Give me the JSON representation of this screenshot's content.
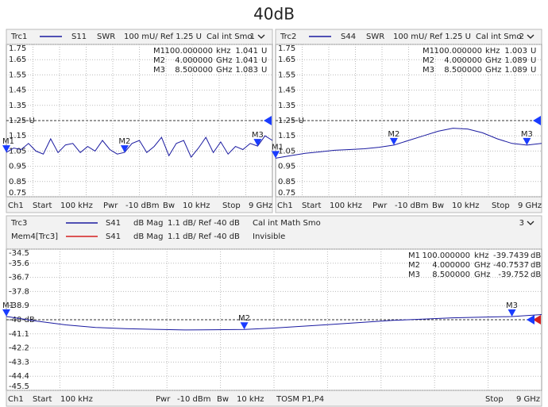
{
  "title": "40dB",
  "chart_data": [
    {
      "type": "line",
      "channel_number": "1",
      "xlim": [
        0.0001,
        9
      ],
      "ylim": [
        0.75,
        1.75
      ],
      "yticks": [
        0.75,
        0.85,
        0.95,
        1.05,
        1.15,
        {
          "value": 1.25,
          "label": "1.25 U"
        },
        1.35,
        1.45,
        1.55,
        1.65,
        1.75
      ],
      "x": [
        0.0001,
        0.25,
        0.5,
        0.75,
        1,
        1.25,
        1.5,
        1.75,
        2,
        2.25,
        2.5,
        2.75,
        3,
        3.25,
        3.5,
        3.75,
        4,
        4.25,
        4.5,
        4.75,
        5,
        5.25,
        5.5,
        5.75,
        6,
        6.25,
        6.5,
        6.75,
        7,
        7.25,
        7.5,
        7.75,
        8,
        8.25,
        8.5,
        8.75,
        9
      ],
      "series": [
        {
          "name": "Trc1",
          "parameter": "S11",
          "format": "SWR",
          "scale": "100 mU/ Ref 1.25 U",
          "cal": "Cal int Smo",
          "color": "#1a1aa0",
          "values": [
            1.041,
            1.07,
            1.06,
            1.1,
            1.05,
            1.03,
            1.13,
            1.04,
            1.09,
            1.1,
            1.04,
            1.08,
            1.05,
            1.12,
            1.06,
            1.03,
            1.041,
            1.1,
            1.12,
            1.04,
            1.08,
            1.14,
            1.02,
            1.1,
            1.12,
            1.01,
            1.07,
            1.14,
            1.04,
            1.11,
            1.03,
            1.08,
            1.06,
            1.1,
            1.083,
            1.15,
            1.12
          ]
        }
      ],
      "markers": [
        {
          "name": "M1",
          "x": 0.0001,
          "x_label": "100.000000",
          "x_unit": "kHz",
          "value": 1.041,
          "unit": "U"
        },
        {
          "name": "M2",
          "x": 4,
          "x_label": "4.000000",
          "x_unit": "GHz",
          "value": 1.041,
          "unit": "U"
        },
        {
          "name": "M3",
          "x": 8.5,
          "x_label": "8.500000",
          "x_unit": "GHz",
          "value": 1.083,
          "unit": "U"
        }
      ],
      "footer": [
        "Ch1",
        "Start",
        "100 kHz",
        "Pwr",
        "-10 dBm",
        "Bw",
        "10 kHz",
        "Stop",
        "9 GHz"
      ]
    },
    {
      "type": "line",
      "channel_number": "2",
      "xlim": [
        0.0001,
        9
      ],
      "ylim": [
        0.75,
        1.75
      ],
      "yticks": [
        0.75,
        0.85,
        0.95,
        1.05,
        1.15,
        {
          "value": 1.25,
          "label": "1.25 U"
        },
        1.35,
        1.45,
        1.55,
        1.65,
        1.75
      ],
      "x": [
        0.0001,
        0.5,
        1,
        1.5,
        2,
        2.5,
        3,
        3.5,
        4,
        4.5,
        5,
        5.5,
        6,
        6.5,
        7,
        7.5,
        8,
        8.5,
        9
      ],
      "series": [
        {
          "name": "Trc2",
          "parameter": "S44",
          "format": "SWR",
          "scale": "100 mU/ Ref 1.25 U",
          "cal": "Cal int Smo",
          "color": "#1a1aa0",
          "values": [
            1.003,
            1.02,
            1.035,
            1.045,
            1.055,
            1.06,
            1.065,
            1.075,
            1.089,
            1.12,
            1.15,
            1.18,
            1.2,
            1.195,
            1.17,
            1.13,
            1.1,
            1.089,
            1.1
          ]
        }
      ],
      "markers": [
        {
          "name": "M1",
          "x": 0.0001,
          "x_label": "100.000000",
          "x_unit": "kHz",
          "value": 1.003,
          "unit": "U"
        },
        {
          "name": "M2",
          "x": 4,
          "x_label": "4.000000",
          "x_unit": "GHz",
          "value": 1.089,
          "unit": "U"
        },
        {
          "name": "M3",
          "x": 8.5,
          "x_label": "8.500000",
          "x_unit": "GHz",
          "value": 1.089,
          "unit": "U"
        }
      ],
      "footer": [
        "Ch1",
        "Start",
        "100 kHz",
        "Pwr",
        "-10 dBm",
        "Bw",
        "10 kHz",
        "Stop",
        "9 GHz"
      ]
    },
    {
      "type": "line",
      "channel_number": "3",
      "xlim": [
        0.0001,
        9
      ],
      "ylim": [
        -45.5,
        -34.5
      ],
      "yticks": [
        -45.5,
        -44.4,
        -43.3,
        -42.2,
        -41.1,
        {
          "value": -40,
          "label": "-40 dB"
        },
        -38.9,
        -37.8,
        -36.7,
        -35.6,
        -34.5
      ],
      "x": [
        0.0001,
        0.5,
        1,
        1.5,
        2,
        2.5,
        3,
        3.5,
        4,
        4.5,
        5,
        5.5,
        6,
        6.5,
        7,
        7.5,
        8,
        8.5,
        9
      ],
      "series": [
        {
          "name": "Trc3",
          "parameter": "S41",
          "format": "dB Mag",
          "scale": "1.1 dB/ Ref -40 dB",
          "cal": "Cal int Math Smo",
          "color": "#1a1aa0",
          "values": [
            -39.7439,
            -40.1,
            -40.4,
            -40.6,
            -40.7,
            -40.75,
            -40.8,
            -40.78,
            -40.7537,
            -40.65,
            -40.5,
            -40.35,
            -40.2,
            -40.05,
            -39.95,
            -39.85,
            -39.8,
            -39.752,
            -39.6
          ]
        },
        {
          "name": "Mem4[Trc3]",
          "parameter": "S41",
          "format": "dB Mag",
          "scale": "1.1 dB/ Ref -40 dB",
          "cal": "Invisible",
          "color": "#d42020"
        }
      ],
      "markers": [
        {
          "name": "M1",
          "x": 0.0001,
          "x_label": "100.000000",
          "x_unit": "kHz",
          "value": -39.7439,
          "unit": "dB"
        },
        {
          "name": "M2",
          "x": 4,
          "x_label": "4.000000",
          "x_unit": "GHz",
          "value": -40.7537,
          "unit": "dB"
        },
        {
          "name": "M3",
          "x": 8.5,
          "x_label": "8.500000",
          "x_unit": "GHz",
          "value": -39.752,
          "unit": "dB"
        }
      ],
      "footer": [
        "Ch1",
        "Start",
        "100 kHz",
        "Pwr",
        "-10 dBm",
        "Bw",
        "10 kHz",
        "TOSM P1,P4",
        "Stop",
        "9 GHz"
      ]
    }
  ]
}
